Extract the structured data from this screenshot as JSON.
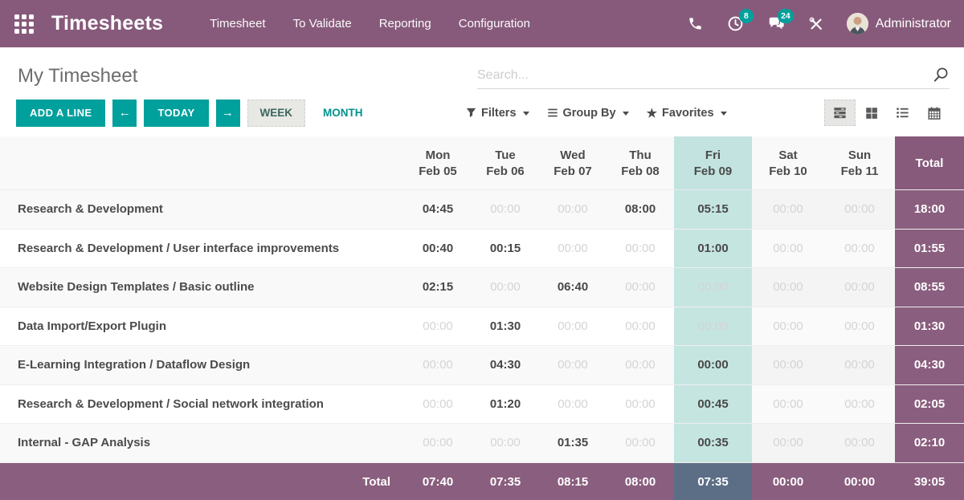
{
  "colors": {
    "topbar": "#875a7b",
    "accent_teal": "#00a09d",
    "fri_highlight": "#c5e5e1",
    "total_column": "#8a5e7e",
    "footer_fri": "#5c6e86",
    "badge": "#00a09d"
  },
  "topbar": {
    "brand": "Timesheets",
    "menus": [
      "Timesheet",
      "To Validate",
      "Reporting",
      "Configuration"
    ],
    "activity_badge": "8",
    "message_badge": "24",
    "user": "Administrator"
  },
  "subheader": {
    "title": "My Timesheet",
    "search_placeholder": "Search..."
  },
  "controls": {
    "add_line": "ADD A LINE",
    "prev": "←",
    "today": "TODAY",
    "next": "→",
    "week": "WEEK",
    "month": "MONTH",
    "filters": "Filters",
    "group_by": "Group By",
    "favorites": "Favorites"
  },
  "grid": {
    "columns": [
      {
        "day": "Mon",
        "date": "Feb 05"
      },
      {
        "day": "Tue",
        "date": "Feb 06"
      },
      {
        "day": "Wed",
        "date": "Feb 07"
      },
      {
        "day": "Thu",
        "date": "Feb 08"
      },
      {
        "day": "Fri",
        "date": "Feb 09"
      },
      {
        "day": "Sat",
        "date": "Feb 10"
      },
      {
        "day": "Sun",
        "date": "Feb 11"
      }
    ],
    "total_header": "Total",
    "rows": [
      {
        "label": "Research & Development",
        "cells": [
          {
            "t": "04:45",
            "dim": false
          },
          {
            "t": "00:00",
            "dim": true
          },
          {
            "t": "00:00",
            "dim": true
          },
          {
            "t": "08:00",
            "dim": false
          },
          {
            "t": "05:15",
            "dim": false
          },
          {
            "t": "00:00",
            "dim": true
          },
          {
            "t": "00:00",
            "dim": true
          }
        ],
        "total": "18:00"
      },
      {
        "label": "Research & Development /  User interface improvements",
        "cells": [
          {
            "t": "00:40",
            "dim": false
          },
          {
            "t": "00:15",
            "dim": false
          },
          {
            "t": "00:00",
            "dim": true
          },
          {
            "t": "00:00",
            "dim": true
          },
          {
            "t": "01:00",
            "dim": false
          },
          {
            "t": "00:00",
            "dim": true
          },
          {
            "t": "00:00",
            "dim": true
          }
        ],
        "total": "01:55"
      },
      {
        "label": "Website Design Templates /  Basic outline",
        "cells": [
          {
            "t": "02:15",
            "dim": false
          },
          {
            "t": "00:00",
            "dim": true
          },
          {
            "t": "06:40",
            "dim": false
          },
          {
            "t": "00:00",
            "dim": true
          },
          {
            "t": "00:00",
            "dim": true
          },
          {
            "t": "00:00",
            "dim": true
          },
          {
            "t": "00:00",
            "dim": true
          }
        ],
        "total": "08:55"
      },
      {
        "label": "Data Import/Export Plugin",
        "cells": [
          {
            "t": "00:00",
            "dim": true
          },
          {
            "t": "01:30",
            "dim": false
          },
          {
            "t": "00:00",
            "dim": true
          },
          {
            "t": "00:00",
            "dim": true
          },
          {
            "t": "00:00",
            "dim": true
          },
          {
            "t": "00:00",
            "dim": true
          },
          {
            "t": "00:00",
            "dim": true
          }
        ],
        "total": "01:30"
      },
      {
        "label": "E-Learning Integration /  Dataflow Design",
        "cells": [
          {
            "t": "00:00",
            "dim": true
          },
          {
            "t": "04:30",
            "dim": false
          },
          {
            "t": "00:00",
            "dim": true
          },
          {
            "t": "00:00",
            "dim": true
          },
          {
            "t": "00:00",
            "dim": false
          },
          {
            "t": "00:00",
            "dim": true
          },
          {
            "t": "00:00",
            "dim": true
          }
        ],
        "total": "04:30"
      },
      {
        "label": "Research & Development /  Social network integration",
        "cells": [
          {
            "t": "00:00",
            "dim": true
          },
          {
            "t": "01:20",
            "dim": false
          },
          {
            "t": "00:00",
            "dim": true
          },
          {
            "t": "00:00",
            "dim": true
          },
          {
            "t": "00:45",
            "dim": false
          },
          {
            "t": "00:00",
            "dim": true
          },
          {
            "t": "00:00",
            "dim": true
          }
        ],
        "total": "02:05"
      },
      {
        "label": "Internal - GAP Analysis",
        "cells": [
          {
            "t": "00:00",
            "dim": true
          },
          {
            "t": "00:00",
            "dim": true
          },
          {
            "t": "01:35",
            "dim": false
          },
          {
            "t": "00:00",
            "dim": true
          },
          {
            "t": "00:35",
            "dim": false
          },
          {
            "t": "00:00",
            "dim": true
          },
          {
            "t": "00:00",
            "dim": true
          }
        ],
        "total": "02:10"
      }
    ],
    "footer": {
      "label": "Total",
      "values": [
        "07:40",
        "07:35",
        "08:15",
        "08:00",
        "07:35",
        "00:00",
        "00:00"
      ],
      "total": "39:05"
    }
  }
}
